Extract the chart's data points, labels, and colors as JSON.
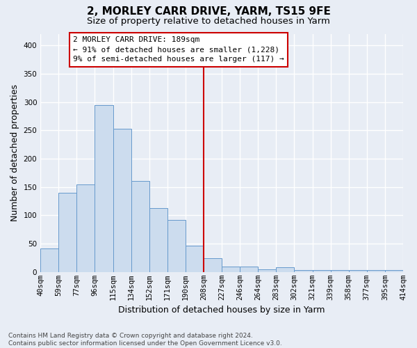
{
  "title": "2, MORLEY CARR DRIVE, YARM, TS15 9FE",
  "subtitle": "Size of property relative to detached houses in Yarm",
  "xlabel": "Distribution of detached houses by size in Yarm",
  "ylabel": "Number of detached properties",
  "categories": [
    "40sqm",
    "59sqm",
    "77sqm",
    "96sqm",
    "115sqm",
    "134sqm",
    "152sqm",
    "171sqm",
    "190sqm",
    "208sqm",
    "227sqm",
    "246sqm",
    "264sqm",
    "283sqm",
    "302sqm",
    "321sqm",
    "339sqm",
    "358sqm",
    "377sqm",
    "395sqm",
    "414sqm"
  ],
  "values": [
    42,
    140,
    155,
    295,
    253,
    161,
    113,
    92,
    46,
    24,
    10,
    10,
    5,
    9,
    4,
    4,
    4,
    4,
    4,
    4
  ],
  "bar_color": "#ccdcee",
  "bar_edge_color": "#6699cc",
  "ref_line_x": 8.5,
  "annotation_text": "2 MORLEY CARR DRIVE: 189sqm\n← 91% of detached houses are smaller (1,228)\n9% of semi-detached houses are larger (117) →",
  "annotation_box_facecolor": "#ffffff",
  "annotation_box_edgecolor": "#cc0000",
  "ylim": [
    0,
    420
  ],
  "yticks": [
    0,
    50,
    100,
    150,
    200,
    250,
    300,
    350,
    400
  ],
  "background_color": "#e8edf5",
  "grid_color": "#ffffff",
  "title_fontsize": 11,
  "subtitle_fontsize": 9.5,
  "axis_label_fontsize": 9,
  "tick_fontsize": 7.5,
  "annotation_fontsize": 8,
  "footer_fontsize": 6.5,
  "footer": "Contains HM Land Registry data © Crown copyright and database right 2024.\nContains public sector information licensed under the Open Government Licence v3.0."
}
